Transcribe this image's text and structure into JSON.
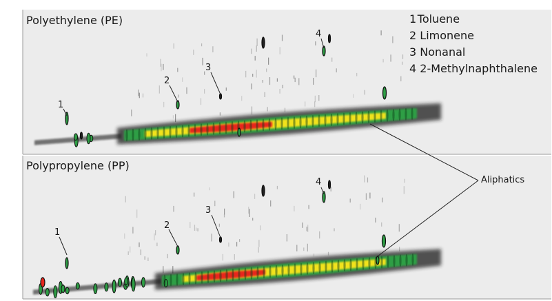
{
  "chart_data": [
    {
      "type": "heatmap",
      "title": "Polyethylene (PE)",
      "legend": [
        {
          "marker": "1",
          "name": "Toluene"
        },
        {
          "marker": "2",
          "name": "Limonene"
        },
        {
          "marker": "3",
          "name": "Nonanal"
        },
        {
          "marker": "4",
          "name": "2-Methylnaphthalene"
        }
      ],
      "annotations": [
        "1",
        "2",
        "3",
        "4"
      ],
      "group_annotation": "Aliphatics",
      "colors": {
        "low": "#1a1a1a",
        "mid": "#2e9e45",
        "high": "#f1e21a",
        "peak": "#e8261c"
      }
    },
    {
      "type": "heatmap",
      "title": "Polypropylene (PP)",
      "annotations": [
        "1",
        "2",
        "3",
        "4"
      ],
      "group_annotation": "Aliphatics",
      "colors": {
        "low": "#1a1a1a",
        "mid": "#2e9e45",
        "high": "#f1e21a",
        "peak": "#e8261c"
      }
    }
  ]
}
